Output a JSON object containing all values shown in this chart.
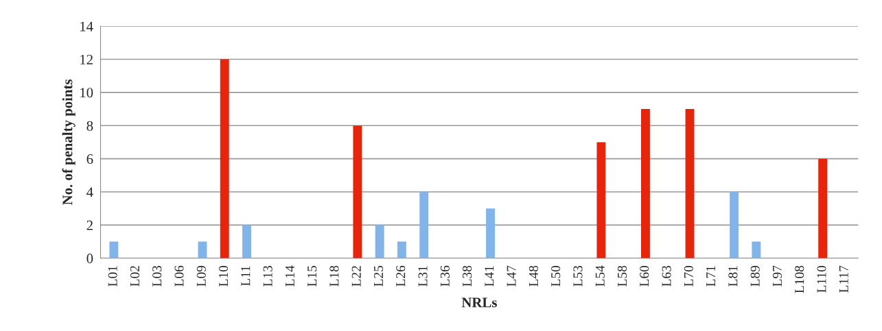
{
  "chart_data": {
    "type": "bar",
    "xlabel": "NRLs",
    "ylabel": "No. of penalty points",
    "categories": [
      "L01",
      "L02",
      "L03",
      "L06",
      "L09",
      "L10",
      "L11",
      "L13",
      "L14",
      "L15",
      "L18",
      "L22",
      "L25",
      "L26",
      "L31",
      "L36",
      "L38",
      "L41",
      "L47",
      "L48",
      "L50",
      "L53",
      "L54",
      "L58",
      "L60",
      "L63",
      "L70",
      "L71",
      "L81",
      "L89",
      "L97",
      "L108",
      "L110",
      "L117"
    ],
    "values": [
      1,
      0,
      0,
      0,
      1,
      12,
      2,
      0,
      0,
      0,
      0,
      8,
      2,
      1,
      4,
      0,
      0,
      3,
      0,
      0,
      0,
      0,
      7,
      0,
      9,
      0,
      9,
      0,
      4,
      1,
      0,
      0,
      6,
      0
    ],
    "colors": [
      "#80b4ea",
      "#80b4ea",
      "#80b4ea",
      "#80b4ea",
      "#80b4ea",
      "#e8240c",
      "#80b4ea",
      "#80b4ea",
      "#80b4ea",
      "#80b4ea",
      "#80b4ea",
      "#e8240c",
      "#80b4ea",
      "#80b4ea",
      "#80b4ea",
      "#80b4ea",
      "#80b4ea",
      "#80b4ea",
      "#80b4ea",
      "#80b4ea",
      "#80b4ea",
      "#80b4ea",
      "#e8240c",
      "#80b4ea",
      "#e8240c",
      "#80b4ea",
      "#e8240c",
      "#80b4ea",
      "#80b4ea",
      "#80b4ea",
      "#80b4ea",
      "#80b4ea",
      "#e8240c",
      "#80b4ea"
    ],
    "ylim": [
      0,
      14
    ],
    "yticks": [
      0,
      2,
      4,
      6,
      8,
      10,
      12,
      14
    ],
    "grid": "y"
  }
}
